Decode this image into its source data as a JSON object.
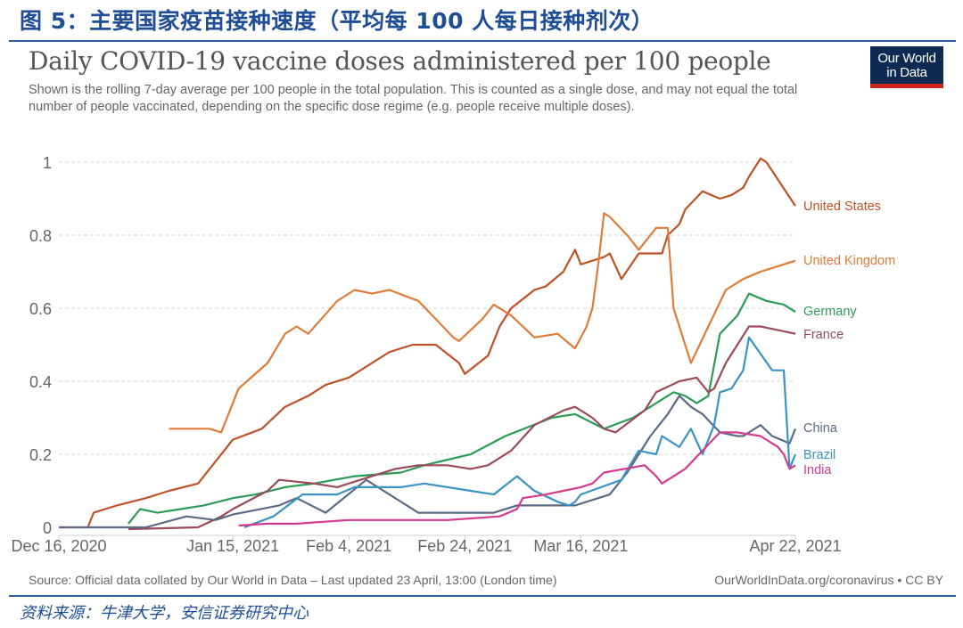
{
  "figure": {
    "title": "图 5：主要国家疫苗接种速度（平均每 100 人每日接种剂次）",
    "source": "资料来源：牛津大学，安信证券研究中心"
  },
  "logo": {
    "line1": "Our World",
    "line2": "in Data",
    "colors": {
      "bg": "#0e2a52",
      "bar": "#ce261e"
    }
  },
  "footer": {
    "source": "Source: Official data collated by Our World in Data – Last updated 23 April, 13:00 (London time)",
    "right": "OurWorldInData.org/coronavirus • CC BY"
  },
  "chart_data": {
    "type": "line",
    "title": "Daily COVID-19 vaccine doses administered per 100 people",
    "subtitle": "Shown is the rolling 7-day average per 100 people in the total population. This is counted as a single dose, and may not equal the total number of people vaccinated, depending on the specific dose regime (e.g. people receive multiple doses).",
    "xlabel": "",
    "ylabel": "",
    "x_unit": "days since Dec 16, 2020",
    "xlim": [
      0,
      127
    ],
    "ylim": [
      0,
      1
    ],
    "grid": true,
    "legend": "right, end-of-line labels",
    "x_ticks": [
      {
        "day": 0,
        "label": "Dec 16, 2020"
      },
      {
        "day": 30,
        "label": "Jan 15, 2021"
      },
      {
        "day": 50,
        "label": "Feb 4, 2021"
      },
      {
        "day": 70,
        "label": "Feb 24, 2021"
      },
      {
        "day": 90,
        "label": "Mar 16, 2021"
      },
      {
        "day": 127,
        "label": "Apr 22, 2021"
      }
    ],
    "y_ticks": [
      {
        "value": 0,
        "label": "0"
      },
      {
        "value": 0.2,
        "label": "0.2"
      },
      {
        "value": 0.4,
        "label": "0.4"
      },
      {
        "value": 0.6,
        "label": "0.6"
      },
      {
        "value": 0.8,
        "label": "0.8"
      },
      {
        "value": 1,
        "label": "1"
      }
    ],
    "series": [
      {
        "name": "United States",
        "color": "#c0522a",
        "x": [
          0,
          5,
          6,
          10,
          15,
          19,
          24,
          30,
          35,
          39,
          43,
          46,
          50,
          54,
          57,
          61,
          65,
          69,
          70,
          74,
          76,
          78,
          82,
          84,
          87,
          89,
          90,
          92,
          94,
          95,
          97,
          100,
          104,
          105,
          107,
          108,
          111,
          114,
          116,
          118,
          119,
          121,
          122,
          127
        ],
        "values": [
          0,
          0,
          0.04,
          0.06,
          0.08,
          0.1,
          0.12,
          0.24,
          0.27,
          0.33,
          0.36,
          0.39,
          0.41,
          0.45,
          0.48,
          0.5,
          0.5,
          0.45,
          0.42,
          0.47,
          0.55,
          0.6,
          0.65,
          0.66,
          0.7,
          0.76,
          0.72,
          0.73,
          0.74,
          0.75,
          0.68,
          0.75,
          0.75,
          0.8,
          0.83,
          0.87,
          0.92,
          0.9,
          0.91,
          0.93,
          0.96,
          1.01,
          1.0,
          0.88
        ]
      },
      {
        "name": "United Kingdom",
        "color": "#e07b39",
        "x": [
          19,
          26,
          28,
          31,
          36,
          39,
          41,
          43,
          48,
          51,
          54,
          57,
          62,
          65,
          68,
          69,
          73,
          75,
          78,
          82,
          86,
          89,
          91,
          92,
          93,
          94,
          95,
          98,
          100,
          101,
          103,
          105,
          106,
          109,
          112,
          115,
          118,
          121,
          125,
          127
        ],
        "values": [
          0.27,
          0.27,
          0.26,
          0.38,
          0.45,
          0.53,
          0.55,
          0.53,
          0.62,
          0.65,
          0.64,
          0.65,
          0.62,
          0.57,
          0.52,
          0.51,
          0.57,
          0.61,
          0.58,
          0.52,
          0.53,
          0.49,
          0.55,
          0.6,
          0.72,
          0.86,
          0.85,
          0.8,
          0.76,
          0.78,
          0.82,
          0.82,
          0.6,
          0.45,
          0.55,
          0.65,
          0.68,
          0.7,
          0.72,
          0.73
        ]
      },
      {
        "name": "Germany",
        "color": "#2e9a57",
        "x": [
          12,
          14,
          17,
          21,
          25,
          30,
          34,
          39,
          44,
          51,
          59,
          63,
          71,
          77,
          85,
          89,
          94,
          99,
          103,
          106,
          108,
          110,
          112,
          114,
          117,
          119,
          122,
          125,
          127
        ],
        "values": [
          0.01,
          0.05,
          0.04,
          0.05,
          0.06,
          0.08,
          0.09,
          0.11,
          0.12,
          0.14,
          0.15,
          0.17,
          0.2,
          0.25,
          0.3,
          0.31,
          0.27,
          0.3,
          0.34,
          0.37,
          0.36,
          0.34,
          0.36,
          0.53,
          0.58,
          0.64,
          0.62,
          0.61,
          0.59
        ]
      },
      {
        "name": "France",
        "color": "#9b4a5a",
        "x": [
          12,
          24,
          28,
          30,
          36,
          38,
          44,
          48,
          54,
          58,
          62,
          67,
          71,
          74,
          78,
          82,
          87,
          89,
          92,
          94,
          96,
          101,
          103,
          107,
          110,
          112,
          113,
          115,
          117,
          119,
          121,
          124,
          127
        ],
        "values": [
          -0.005,
          0,
          0.03,
          0.05,
          0.1,
          0.13,
          0.12,
          0.11,
          0.14,
          0.16,
          0.17,
          0.17,
          0.16,
          0.17,
          0.21,
          0.28,
          0.32,
          0.33,
          0.3,
          0.27,
          0.26,
          0.32,
          0.37,
          0.4,
          0.41,
          0.37,
          0.38,
          0.45,
          0.5,
          0.55,
          0.55,
          0.54,
          0.53
        ]
      },
      {
        "name": "China",
        "color": "#5b6b86",
        "x": [
          0,
          15,
          22,
          27,
          30,
          38,
          41,
          46,
          53,
          62,
          75,
          79,
          89,
          95,
          98,
          102,
          105,
          107,
          109,
          111,
          114,
          117,
          118,
          121,
          123,
          126,
          127
        ],
        "values": [
          0,
          0,
          0.03,
          0.02,
          0.035,
          0.06,
          0.08,
          0.04,
          0.13,
          0.04,
          0.04,
          0.06,
          0.06,
          0.09,
          0.15,
          0.25,
          0.31,
          0.36,
          0.33,
          0.31,
          0.26,
          0.25,
          0.25,
          0.28,
          0.25,
          0.23,
          0.27
        ]
      },
      {
        "name": "Brazil",
        "color": "#3a93c3",
        "x": [
          32,
          37,
          42,
          48,
          51,
          59,
          63,
          71,
          75,
          79,
          82,
          86,
          88,
          89,
          90,
          97,
          100,
          103,
          104,
          107,
          109,
          111,
          113,
          114,
          116,
          118,
          119,
          123,
          125,
          126,
          127
        ],
        "values": [
          0,
          0.03,
          0.09,
          0.09,
          0.11,
          0.11,
          0.12,
          0.1,
          0.09,
          0.14,
          0.1,
          0.07,
          0.06,
          0.07,
          0.09,
          0.13,
          0.21,
          0.2,
          0.25,
          0.22,
          0.27,
          0.2,
          0.28,
          0.37,
          0.38,
          0.43,
          0.52,
          0.43,
          0.43,
          0.16,
          0.2
        ]
      },
      {
        "name": "India",
        "color": "#d43b8f",
        "x": [
          31,
          36,
          41,
          50,
          59,
          67,
          76,
          79,
          80,
          84,
          87,
          90,
          92,
          94,
          101,
          103,
          104,
          108,
          111,
          114,
          117,
          121,
          124,
          125,
          126,
          127
        ],
        "values": [
          0.005,
          0.01,
          0.01,
          0.02,
          0.02,
          0.02,
          0.03,
          0.05,
          0.08,
          0.09,
          0.1,
          0.11,
          0.12,
          0.15,
          0.17,
          0.14,
          0.12,
          0.16,
          0.21,
          0.26,
          0.26,
          0.25,
          0.22,
          0.2,
          0.16,
          0.17
        ]
      }
    ],
    "end_labels": [
      {
        "name": "United States",
        "value": 0.88
      },
      {
        "name": "United Kingdom",
        "value": 0.73
      },
      {
        "name": "Germany",
        "value": 0.59
      },
      {
        "name": "France",
        "value": 0.53
      },
      {
        "name": "China",
        "value": 0.27
      },
      {
        "name": "Brazil",
        "value": 0.2
      },
      {
        "name": "India",
        "value": 0.17
      }
    ]
  }
}
